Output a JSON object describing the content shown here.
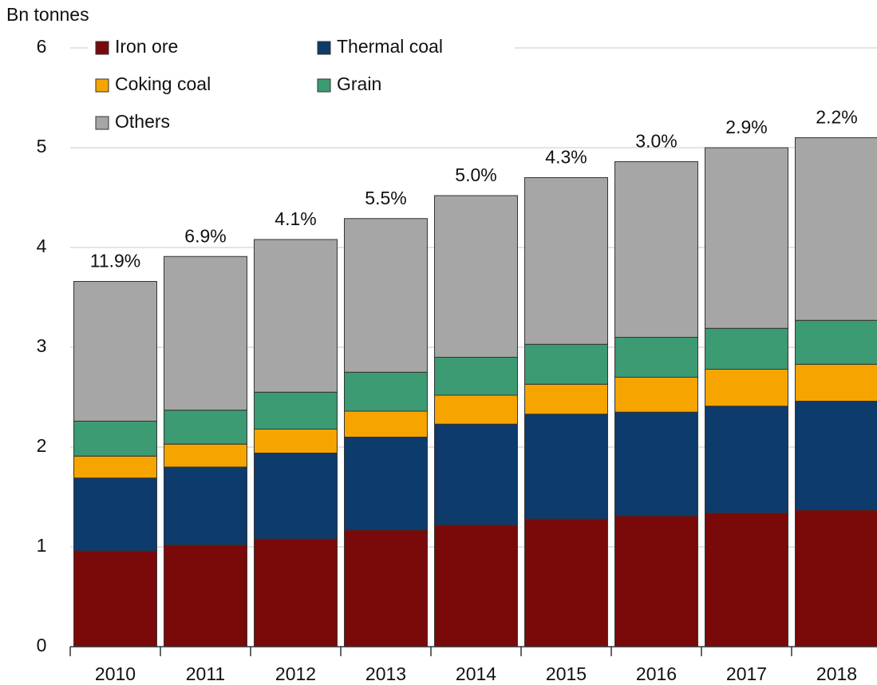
{
  "chart_data": {
    "type": "stacked_bar",
    "y_axis_label": "Bn tonnes",
    "categories": [
      "2010",
      "2011",
      "2012",
      "2013",
      "2014",
      "2015",
      "2016",
      "2017",
      "2018"
    ],
    "series": [
      {
        "name": "Iron ore",
        "color": "#7a0a0a",
        "values": [
          0.96,
          1.02,
          1.08,
          1.17,
          1.22,
          1.28,
          1.31,
          1.34,
          1.37
        ]
      },
      {
        "name": "Thermal coal",
        "color": "#0d3b6b",
        "values": [
          0.73,
          0.78,
          0.86,
          0.93,
          1.01,
          1.05,
          1.04,
          1.07,
          1.09
        ]
      },
      {
        "name": "Coking coal",
        "color": "#f6a500",
        "values": [
          0.22,
          0.23,
          0.24,
          0.26,
          0.29,
          0.3,
          0.35,
          0.37,
          0.37
        ]
      },
      {
        "name": "Grain",
        "color": "#3d9b74",
        "values": [
          0.35,
          0.34,
          0.37,
          0.39,
          0.38,
          0.4,
          0.4,
          0.41,
          0.44
        ]
      },
      {
        "name": "Others",
        "color": "#a6a6a6",
        "values": [
          1.4,
          1.54,
          1.53,
          1.54,
          1.62,
          1.67,
          1.76,
          1.81,
          1.83
        ]
      }
    ],
    "annotations": [
      "11.9%",
      "6.9%",
      "4.1%",
      "5.5%",
      "5.0%",
      "4.3%",
      "3.0%",
      "2.9%",
      "2.2%"
    ],
    "ylim": [
      0,
      6
    ],
    "yticks": [
      0,
      1,
      2,
      3,
      4,
      5,
      6
    ],
    "grid": true
  }
}
